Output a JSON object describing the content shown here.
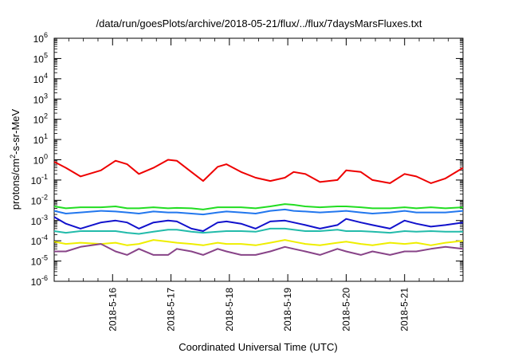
{
  "chart_data": {
    "type": "line",
    "title": "/data/run/goesPlots/archive/2018-05-21/flux/../flux/7daysMarsFluxes.txt",
    "xlabel": "Coordinated Universal Time (UTC)",
    "ylabel": {
      "prefix": "protons/cm",
      "sup": "2",
      "suffix": "-s-sr-MeV"
    },
    "y_scale": "log",
    "ylim_exponents": [
      -6,
      6
    ],
    "y_tick_exponents": [
      -6,
      -5,
      -4,
      -3,
      -2,
      -1,
      0,
      1,
      2,
      3,
      4,
      5,
      6
    ],
    "y_tick_base": "10",
    "xlim_days": [
      15.0,
      22.0
    ],
    "x_ticks": [
      {
        "day": 16,
        "label": "2018-5-16"
      },
      {
        "day": 17,
        "label": "2018-5-17"
      },
      {
        "day": 18,
        "label": "2018-5-18"
      },
      {
        "day": 19,
        "label": "2018-5-19"
      },
      {
        "day": 20,
        "label": "2018-5-20"
      },
      {
        "day": 21,
        "label": "2018-5-21"
      }
    ],
    "grid": false,
    "legend": "none",
    "series": [
      {
        "color": "#ee0000",
        "days": [
          15.0,
          15.2,
          15.45,
          15.8,
          16.05,
          16.25,
          16.45,
          16.7,
          16.95,
          17.1,
          17.35,
          17.55,
          17.8,
          17.95,
          18.2,
          18.45,
          18.7,
          18.95,
          19.1,
          19.3,
          19.55,
          19.85,
          20.0,
          20.25,
          20.45,
          20.75,
          21.0,
          21.2,
          21.45,
          21.7,
          22.0
        ],
        "values": [
          0.8,
          0.4,
          0.15,
          0.3,
          0.9,
          0.6,
          0.2,
          0.4,
          1.0,
          0.9,
          0.25,
          0.09,
          0.45,
          0.6,
          0.25,
          0.13,
          0.09,
          0.13,
          0.25,
          0.2,
          0.08,
          0.1,
          0.3,
          0.25,
          0.1,
          0.07,
          0.2,
          0.15,
          0.07,
          0.12,
          0.4
        ]
      },
      {
        "color": "#22dd22",
        "days": [
          15.0,
          15.2,
          15.45,
          15.8,
          16.05,
          16.25,
          16.45,
          16.7,
          16.95,
          17.1,
          17.35,
          17.55,
          17.8,
          17.95,
          18.2,
          18.45,
          18.7,
          18.95,
          19.1,
          19.3,
          19.55,
          19.85,
          20.0,
          20.25,
          20.45,
          20.75,
          21.0,
          21.2,
          21.45,
          21.7,
          22.0
        ],
        "values": [
          0.005,
          0.004,
          0.0045,
          0.0045,
          0.005,
          0.004,
          0.004,
          0.0045,
          0.004,
          0.0042,
          0.004,
          0.0035,
          0.0045,
          0.0045,
          0.0045,
          0.004,
          0.005,
          0.0065,
          0.006,
          0.005,
          0.0045,
          0.005,
          0.005,
          0.0045,
          0.004,
          0.004,
          0.0045,
          0.004,
          0.0045,
          0.004,
          0.0045
        ]
      },
      {
        "color": "#2277ee",
        "days": [
          15.0,
          15.2,
          15.45,
          15.8,
          16.05,
          16.25,
          16.45,
          16.7,
          16.95,
          17.1,
          17.35,
          17.55,
          17.8,
          17.95,
          18.2,
          18.45,
          18.7,
          18.95,
          19.1,
          19.3,
          19.55,
          19.85,
          20.0,
          20.25,
          20.45,
          20.75,
          21.0,
          21.2,
          21.45,
          21.7,
          22.0
        ],
        "values": [
          0.003,
          0.0022,
          0.0025,
          0.003,
          0.0028,
          0.0025,
          0.0022,
          0.0028,
          0.0025,
          0.0025,
          0.0022,
          0.002,
          0.0025,
          0.0028,
          0.0025,
          0.0022,
          0.003,
          0.0035,
          0.003,
          0.0028,
          0.0025,
          0.0028,
          0.003,
          0.0025,
          0.0022,
          0.0025,
          0.003,
          0.0025,
          0.0025,
          0.0025,
          0.003
        ]
      },
      {
        "color": "#1111cc",
        "days": [
          15.0,
          15.2,
          15.45,
          15.8,
          16.05,
          16.25,
          16.45,
          16.7,
          16.95,
          17.1,
          17.35,
          17.55,
          17.8,
          17.95,
          18.2,
          18.45,
          18.7,
          18.95,
          19.1,
          19.3,
          19.55,
          19.85,
          20.0,
          20.25,
          20.45,
          20.75,
          21.0,
          21.2,
          21.45,
          21.7,
          22.0
        ],
        "values": [
          0.0015,
          0.0007,
          0.0004,
          0.0008,
          0.001,
          0.0008,
          0.0004,
          0.0008,
          0.001,
          0.0009,
          0.0004,
          0.0003,
          0.0008,
          0.0009,
          0.0007,
          0.0004,
          0.0009,
          0.001,
          0.0008,
          0.0006,
          0.0004,
          0.0006,
          0.0012,
          0.0008,
          0.0006,
          0.0004,
          0.001,
          0.0007,
          0.0005,
          0.0006,
          0.0008
        ]
      },
      {
        "color": "#22bbaa",
        "days": [
          15.0,
          15.2,
          15.45,
          15.8,
          16.05,
          16.25,
          16.45,
          16.7,
          16.95,
          17.1,
          17.35,
          17.55,
          17.8,
          17.95,
          18.2,
          18.45,
          18.7,
          18.95,
          19.1,
          19.3,
          19.55,
          19.85,
          20.0,
          20.25,
          20.45,
          20.75,
          21.0,
          21.2,
          21.45,
          21.7,
          22.0
        ],
        "values": [
          0.0003,
          0.00025,
          0.0003,
          0.0003,
          0.0003,
          0.00025,
          0.00022,
          0.00028,
          0.00035,
          0.00035,
          0.00028,
          0.00025,
          0.00028,
          0.0003,
          0.0003,
          0.00028,
          0.0004,
          0.0004,
          0.00035,
          0.0003,
          0.0003,
          0.00035,
          0.0003,
          0.0003,
          0.00028,
          0.00025,
          0.0003,
          0.00028,
          0.0003,
          0.00028,
          0.00028
        ]
      },
      {
        "color": "#eeee00",
        "days": [
          15.0,
          15.2,
          15.45,
          15.8,
          16.05,
          16.25,
          16.45,
          16.7,
          16.95,
          17.1,
          17.35,
          17.55,
          17.8,
          17.95,
          18.2,
          18.45,
          18.7,
          18.95,
          19.1,
          19.3,
          19.55,
          19.85,
          20.0,
          20.25,
          20.45,
          20.75,
          21.0,
          21.2,
          21.45,
          21.7,
          22.0
        ],
        "values": [
          9e-05,
          7e-05,
          8e-05,
          7e-05,
          8e-05,
          6e-05,
          7e-05,
          0.00011,
          9e-05,
          8e-05,
          7e-05,
          6e-05,
          8e-05,
          7e-05,
          7e-05,
          6e-05,
          8e-05,
          0.00011,
          9e-05,
          7e-05,
          6e-05,
          8e-05,
          9e-05,
          7e-05,
          6e-05,
          8e-05,
          7e-05,
          8e-05,
          6e-05,
          8e-05,
          0.0001
        ]
      },
      {
        "color": "#884488",
        "days": [
          15.0,
          15.2,
          15.45,
          15.8,
          16.05,
          16.25,
          16.45,
          16.7,
          16.95,
          17.1,
          17.35,
          17.55,
          17.8,
          17.95,
          18.2,
          18.45,
          18.7,
          18.95,
          19.1,
          19.3,
          19.55,
          19.85,
          20.0,
          20.25,
          20.45,
          20.75,
          21.0,
          21.2,
          21.45,
          21.7,
          22.0
        ],
        "values": [
          3e-05,
          3e-05,
          5e-05,
          7e-05,
          3e-05,
          2e-05,
          4e-05,
          2e-05,
          2e-05,
          4e-05,
          3e-05,
          2e-05,
          4e-05,
          3e-05,
          2e-05,
          2e-05,
          3e-05,
          5e-05,
          4e-05,
          3e-05,
          2e-05,
          4e-05,
          3e-05,
          2e-05,
          3e-05,
          2e-05,
          3e-05,
          3e-05,
          4e-05,
          5e-05,
          4e-05
        ]
      }
    ]
  }
}
